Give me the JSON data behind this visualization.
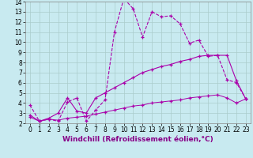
{
  "xlabel": "Windchill (Refroidissement éolien,°C)",
  "xlim": [
    -0.5,
    23.5
  ],
  "ylim": [
    2,
    14
  ],
  "xticks": [
    0,
    1,
    2,
    3,
    4,
    5,
    6,
    7,
    8,
    9,
    10,
    11,
    12,
    13,
    14,
    15,
    16,
    17,
    18,
    19,
    20,
    21,
    22,
    23
  ],
  "yticks": [
    2,
    3,
    4,
    5,
    6,
    7,
    8,
    9,
    10,
    11,
    12,
    13,
    14
  ],
  "bg_color": "#c8eaf0",
  "grid_color": "#aacccc",
  "line_color": "#aa00aa",
  "line1_x": [
    0,
    1,
    2,
    3,
    4,
    5,
    6,
    7,
    8,
    9,
    10,
    11,
    12,
    13,
    14,
    15,
    16,
    17,
    18,
    19,
    20,
    21,
    22,
    23
  ],
  "line1_y": [
    3.8,
    2.2,
    2.4,
    2.2,
    4.1,
    4.5,
    2.2,
    3.3,
    4.3,
    11.0,
    14.3,
    13.3,
    10.5,
    13.0,
    12.5,
    12.6,
    11.8,
    9.9,
    10.2,
    8.6,
    8.7,
    6.3,
    6.0,
    4.4
  ],
  "line2_x": [
    0,
    1,
    2,
    3,
    4,
    5,
    6,
    7,
    8,
    9,
    10,
    11,
    12,
    13,
    14,
    15,
    16,
    17,
    18,
    19,
    20,
    21,
    22,
    23
  ],
  "line2_y": [
    2.8,
    2.2,
    2.5,
    3.0,
    4.5,
    3.2,
    3.0,
    4.5,
    5.0,
    5.5,
    6.0,
    6.5,
    7.0,
    7.3,
    7.6,
    7.8,
    8.1,
    8.3,
    8.6,
    8.7,
    8.7,
    8.7,
    6.2,
    4.4
  ],
  "line3_x": [
    0,
    1,
    2,
    3,
    4,
    5,
    6,
    7,
    8,
    9,
    10,
    11,
    12,
    13,
    14,
    15,
    16,
    17,
    18,
    19,
    20,
    21,
    22,
    23
  ],
  "line3_y": [
    2.6,
    2.2,
    2.4,
    2.3,
    2.5,
    2.6,
    2.7,
    2.9,
    3.1,
    3.3,
    3.5,
    3.7,
    3.8,
    4.0,
    4.1,
    4.2,
    4.3,
    4.5,
    4.6,
    4.7,
    4.8,
    4.5,
    4.0,
    4.4
  ],
  "axis_fontsize": 6.5,
  "tick_fontsize": 5.5
}
